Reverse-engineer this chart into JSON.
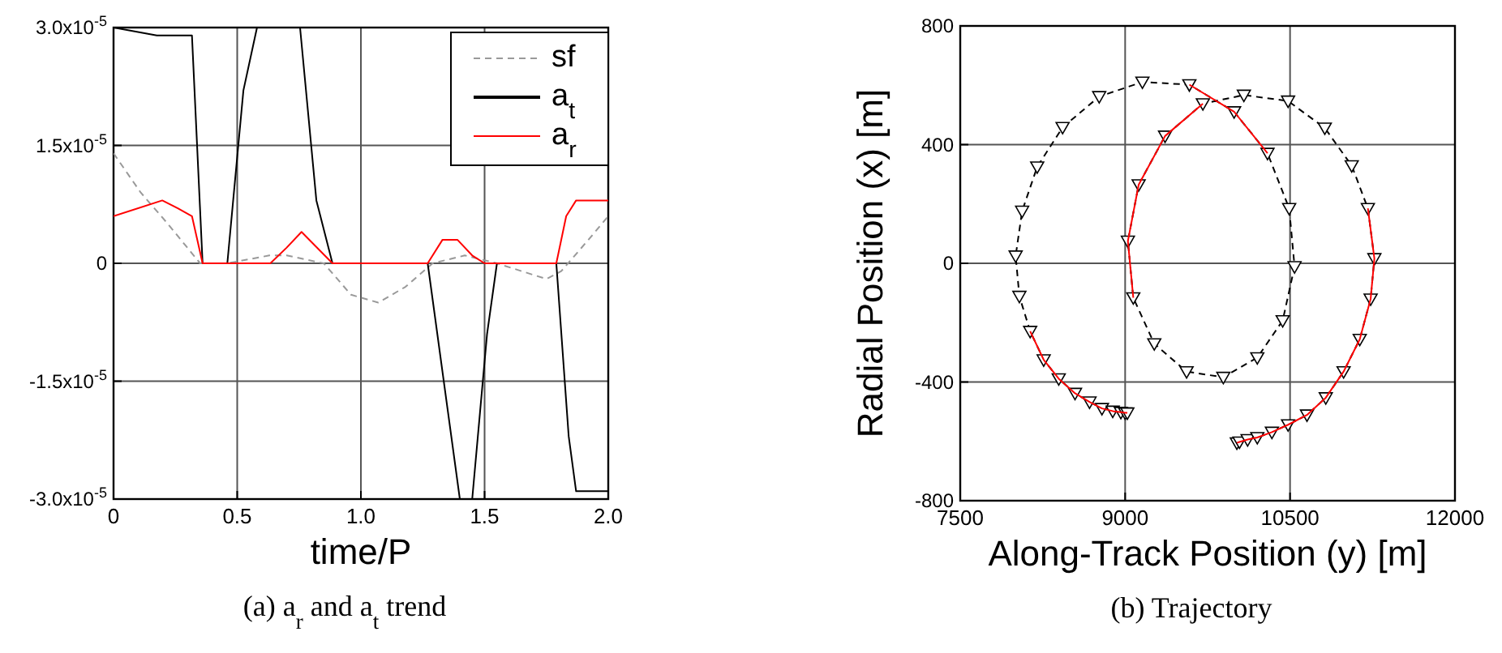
{
  "chart_data": [
    {
      "type": "line",
      "title": "(a) a$_{r}$ and a$_{t}$ trend",
      "xlabel": "time/P",
      "xlim": [
        0,
        2
      ],
      "xticks": [
        0,
        0.5,
        {
          "value": 1,
          "label": "1.0"
        },
        1.5,
        {
          "value": 2,
          "label": "2.0"
        }
      ],
      "ylim": [
        -3e-05,
        3e-05
      ],
      "yticks": [
        {
          "value": -3e-05,
          "label": "-3.0x10$^{-5}$"
        },
        {
          "value": -1.5e-05,
          "label": "-1.5x10$^{-5}$"
        },
        0,
        {
          "value": 1.5e-05,
          "label": "1.5x10$^{-5}$"
        },
        {
          "value": 3e-05,
          "label": "3.0x10$^{-5}$"
        }
      ],
      "grid": true,
      "legend": "top right",
      "marker": "none",
      "series": [
        {
          "name": "sf",
          "color": "#999999",
          "line_style": "dashed",
          "x": [
            0,
            0.11,
            0.22,
            0.35,
            0.46,
            0.63,
            0.7,
            0.85,
            0.96,
            1.07,
            1.18,
            1.29,
            1.42,
            1.55,
            1.75,
            1.81,
            1.92,
            2.0
          ],
          "values": [
            1.4e-05,
            9e-06,
            5e-06,
            0,
            0,
            1e-06,
            1e-06,
            0,
            -4e-06,
            -5e-06,
            -3e-06,
            0,
            1e-06,
            0,
            -2e-06,
            -1e-06,
            3e-06,
            6e-06
          ]
        },
        {
          "name": "a$_{t}$",
          "color": "#000000",
          "line_style": "solid",
          "x": [
            0,
            0.175,
            0.317,
            0.36,
            0.46,
            0.525,
            0.58,
            0.754,
            0.82,
            0.885,
            1.27,
            1.4,
            1.45,
            1.51,
            1.55,
            1.79,
            1.84,
            1.87,
            2.0
          ],
          "values": [
            3e-05,
            2.9e-05,
            2.9e-05,
            0,
            0,
            2.2e-05,
            3e-05,
            3e-05,
            8e-06,
            0,
            0,
            -3e-05,
            -3e-05,
            -9e-06,
            0,
            0,
            -2.2e-05,
            -2.9e-05,
            -2.9e-05
          ]
        },
        {
          "name": "a$_{r}$",
          "color": "#ff0000",
          "line_style": "solid",
          "x": [
            0,
            0.197,
            0.26,
            0.317,
            0.36,
            0.46,
            0.634,
            0.7,
            0.76,
            0.885,
            1.27,
            1.33,
            1.39,
            1.45,
            1.5,
            1.79,
            1.83,
            1.87,
            1.92,
            2.0
          ],
          "values": [
            6e-06,
            8e-06,
            7e-06,
            6e-06,
            0,
            0,
            0,
            2e-06,
            4e-06,
            0,
            0,
            3e-06,
            3e-06,
            1e-06,
            0,
            0,
            6e-06,
            8e-06,
            8e-06,
            8e-06
          ]
        }
      ]
    },
    {
      "type": "line",
      "title": "(b) Trajectory",
      "xlabel": "Along-Track Position (y) [m]",
      "ylabel": "Radial Position (x) [m]",
      "xlim": [
        7500,
        12000
      ],
      "xticks": [
        7500,
        9000,
        10500,
        12000
      ],
      "ylim": [
        -800,
        800
      ],
      "yticks": [
        -800,
        -400,
        0,
        400,
        800
      ],
      "grid": true,
      "legend": false,
      "series": [
        {
          "color": "#000000",
          "line_style": "dashed",
          "marker": "triangle",
          "x": [
            10016,
            10040,
            10114,
            10202,
            10335,
            10482,
            10654,
            10825,
            10987,
            11134,
            11233,
            11267,
            11208,
            11061,
            10816,
            10482,
            10080,
            9707,
            9363,
            9123,
            9025,
            9074,
            9265,
            9559,
            9893,
            10202,
            10433,
            10541,
            10492,
            10295,
            9991,
            9584,
            9157,
            8764,
            8431,
            8200,
            8063,
            8004,
            8038,
            8136,
            8259,
            8396,
            8544,
            8676,
            8789,
            8887,
            8961,
            9000,
            9020
          ],
          "values": [
            -605,
            -602,
            -594,
            -587,
            -569,
            -544,
            -511,
            -453,
            -365,
            -256,
            -120,
            16,
            185,
            329,
            456,
            547,
            567,
            538,
            429,
            265,
            75,
            -116,
            -271,
            -365,
            -384,
            -318,
            -193,
            -11,
            185,
            371,
            511,
            602,
            611,
            562,
            458,
            325,
            176,
            25,
            -111,
            -229,
            -325,
            -389,
            -438,
            -467,
            -489,
            -498,
            -502,
            -504,
            -504
          ]
        },
        {
          "color": "#ff0000",
          "line_style": "solid",
          "marker": "none",
          "x": [
            10016,
            10040,
            10114,
            10202,
            10335,
            10482,
            10654,
            10825,
            10987,
            11134,
            11233,
            11267,
            11208
          ],
          "values": [
            -605,
            -602,
            -594,
            -587,
            -569,
            -544,
            -511,
            -453,
            -365,
            -256,
            -120,
            16,
            185
          ]
        },
        {
          "color": "#ff0000",
          "line_style": "solid",
          "marker": "none",
          "x": [
            9707,
            9363,
            9123,
            9025,
            9074
          ],
          "values": [
            538,
            429,
            265,
            75,
            -116
          ]
        },
        {
          "color": "#ff0000",
          "line_style": "solid",
          "marker": "none",
          "x": [
            10295,
            9991,
            9584
          ],
          "values": [
            371,
            511,
            602
          ]
        },
        {
          "color": "#ff0000",
          "line_style": "solid",
          "marker": "none",
          "x": [
            8136,
            8259,
            8396,
            8544,
            8676,
            8789,
            8887,
            8961,
            9000,
            9020
          ],
          "values": [
            -229,
            -325,
            -389,
            -438,
            -467,
            -489,
            -498,
            -502,
            -504,
            -504
          ]
        }
      ]
    }
  ]
}
